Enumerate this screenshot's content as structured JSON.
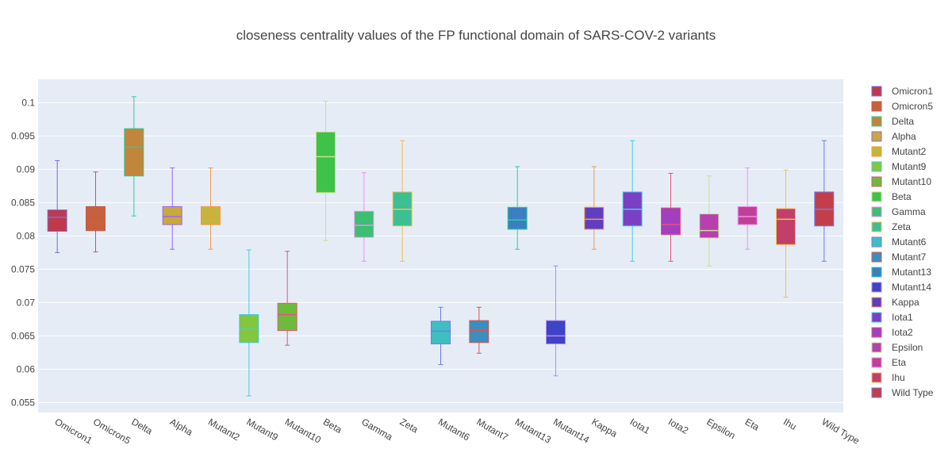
{
  "chart_data": {
    "type": "box",
    "title": "closeness centrality values of the FP functional domain of SARS-COV-2 variants",
    "xlabel": "",
    "ylabel": "",
    "ylim": [
      0.0535,
      0.1035
    ],
    "yticks": [
      0.055,
      0.06,
      0.065,
      0.07,
      0.075,
      0.08,
      0.085,
      0.09,
      0.095,
      0.1
    ],
    "ytick_labels": [
      "0.055",
      "0.06",
      "0.065",
      "0.07",
      "0.075",
      "0.08",
      "0.085",
      "0.09",
      "0.095",
      "0.1"
    ],
    "grid": true,
    "legend_position": "right",
    "series": [
      {
        "name": "Omicron1",
        "min": 0.0775,
        "q1": 0.0807,
        "median": 0.0828,
        "q3": 0.0839,
        "max": 0.0913,
        "color": "#c0394b",
        "line": "#6f6fe6"
      },
      {
        "name": "Omicron5",
        "min": 0.0776,
        "q1": 0.0808,
        "median": 0.0828,
        "q3": 0.0844,
        "max": 0.0896,
        "color": "#c8603c",
        "line": "#c25b4f"
      },
      {
        "name": "Delta",
        "min": 0.083,
        "q1": 0.089,
        "median": 0.0933,
        "q3": 0.0961,
        "max": 0.1009,
        "color": "#c2853c",
        "line": "#2fc99a"
      },
      {
        "name": "Alpha",
        "min": 0.078,
        "q1": 0.0817,
        "median": 0.0829,
        "q3": 0.0844,
        "max": 0.0902,
        "color": "#c9a83c",
        "line": "#9a66ee"
      },
      {
        "name": "Mutant2",
        "min": 0.078,
        "q1": 0.0817,
        "median": 0.0828,
        "q3": 0.0844,
        "max": 0.0902,
        "color": "#c6b53c",
        "line": "#ef9a4c"
      },
      {
        "name": "Mutant9",
        "min": 0.056,
        "q1": 0.064,
        "median": 0.066,
        "q3": 0.0682,
        "max": 0.0779,
        "color": "#84c63c",
        "line": "#3fcde6"
      },
      {
        "name": "Mutant10",
        "min": 0.0636,
        "q1": 0.0658,
        "median": 0.0682,
        "q3": 0.0699,
        "max": 0.0777,
        "color": "#6dbb3a",
        "line": "#e0557d"
      },
      {
        "name": "Beta",
        "min": 0.0793,
        "q1": 0.0865,
        "median": 0.0919,
        "q3": 0.0956,
        "max": 0.1002,
        "color": "#3fc24a",
        "line": "#c6e08a"
      },
      {
        "name": "Gamma",
        "min": 0.0762,
        "q1": 0.0798,
        "median": 0.0816,
        "q3": 0.0837,
        "max": 0.0895,
        "color": "#3bbf72",
        "line": "#ef8ef2"
      },
      {
        "name": "Zeta",
        "min": 0.0762,
        "q1": 0.0815,
        "median": 0.084,
        "q3": 0.0866,
        "max": 0.0943,
        "color": "#3dbf94",
        "line": "#f0c04f"
      },
      {
        "name": "Mutant6",
        "min": 0.0607,
        "q1": 0.0638,
        "median": 0.0657,
        "q3": 0.0672,
        "max": 0.0693,
        "color": "#3fbfc2",
        "line": "#6b7de9"
      },
      {
        "name": "Mutant7",
        "min": 0.0624,
        "q1": 0.064,
        "median": 0.0658,
        "q3": 0.0673,
        "max": 0.0693,
        "color": "#3b8fbf",
        "line": "#d9544d"
      },
      {
        "name": "Mutant13",
        "min": 0.078,
        "q1": 0.081,
        "median": 0.0824,
        "q3": 0.0843,
        "max": 0.0904,
        "color": "#3b7ec2",
        "line": "#2ccf9c"
      },
      {
        "name": "Mutant14",
        "min": 0.059,
        "q1": 0.0638,
        "median": 0.065,
        "q3": 0.0673,
        "max": 0.0755,
        "color": "#3f43c6",
        "line": "#b389f2"
      },
      {
        "name": "Kappa",
        "min": 0.078,
        "q1": 0.081,
        "median": 0.0825,
        "q3": 0.0843,
        "max": 0.0904,
        "color": "#5f3ec2",
        "line": "#f39a4f"
      },
      {
        "name": "Iota1",
        "min": 0.0762,
        "q1": 0.0815,
        "median": 0.084,
        "q3": 0.0866,
        "max": 0.0943,
        "color": "#7b3fc4",
        "line": "#3fcde6"
      },
      {
        "name": "Iota2",
        "min": 0.0762,
        "q1": 0.0802,
        "median": 0.0817,
        "q3": 0.0842,
        "max": 0.0894,
        "color": "#a33fbf",
        "line": "#e0557d"
      },
      {
        "name": "Epsilon",
        "min": 0.0755,
        "q1": 0.0797,
        "median": 0.0808,
        "q3": 0.0833,
        "max": 0.089,
        "color": "#b83fb0",
        "line": "#c6e08a"
      },
      {
        "name": "Eta",
        "min": 0.078,
        "q1": 0.0817,
        "median": 0.0829,
        "q3": 0.0844,
        "max": 0.0902,
        "color": "#c23f96",
        "line": "#ef8ef2"
      },
      {
        "name": "Ihu",
        "min": 0.0708,
        "q1": 0.0787,
        "median": 0.0825,
        "q3": 0.0841,
        "max": 0.0899,
        "color": "#c23f6c",
        "line": "#f0c04f"
      },
      {
        "name": "Wild Type",
        "min": 0.0762,
        "q1": 0.0815,
        "median": 0.084,
        "q3": 0.0866,
        "max": 0.0943,
        "color": "#c23f4a",
        "line": "#6b7de9"
      }
    ]
  }
}
